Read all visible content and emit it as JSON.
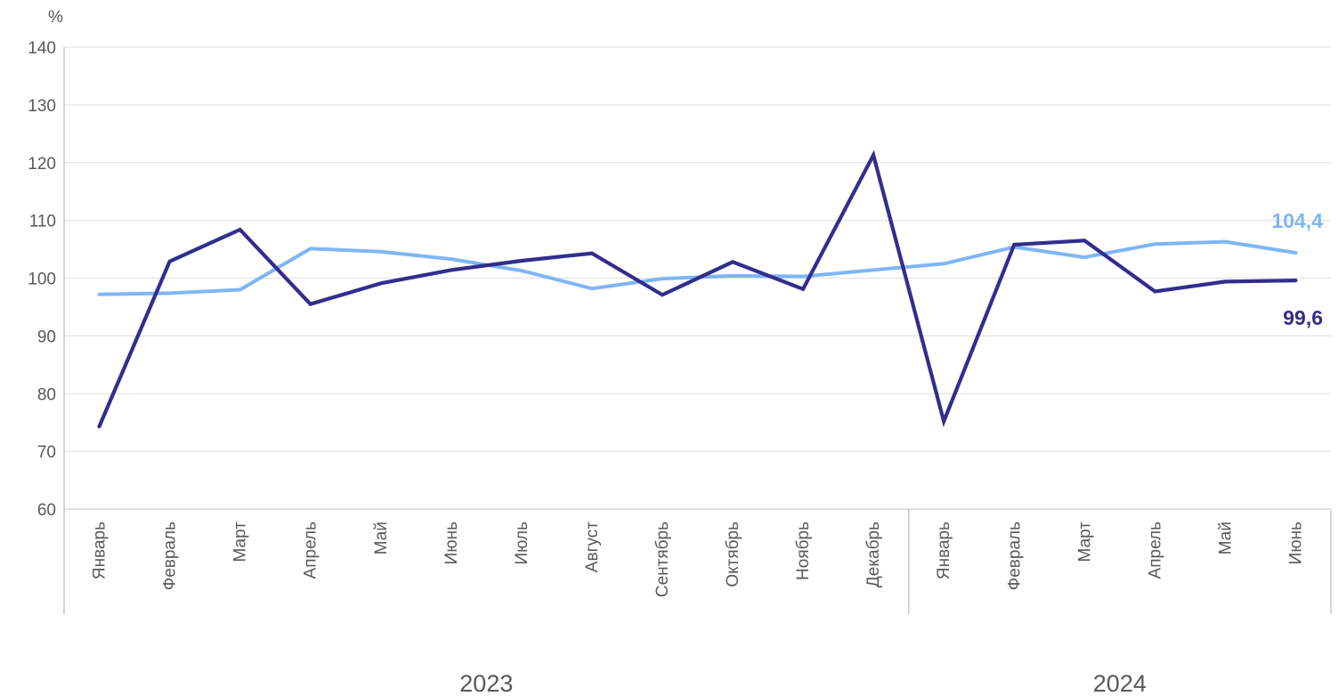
{
  "chart_data": {
    "type": "line",
    "unit_label": "%",
    "ylim": [
      60,
      140
    ],
    "yticks": [
      60,
      70,
      80,
      90,
      100,
      110,
      120,
      130,
      140
    ],
    "grid": true,
    "categories": [
      "Январь",
      "Февраль",
      "Март",
      "Апрель",
      "Май",
      "Июнь",
      "Июль",
      "Август",
      "Сентябрь",
      "Октябрь",
      "Ноябрь",
      "Декабрь",
      "Январь",
      "Февраль",
      "Март",
      "Апрель",
      "Май",
      "Июнь"
    ],
    "year_groups": [
      {
        "label": "2023",
        "count": 12
      },
      {
        "label": "2024",
        "count": 6
      }
    ],
    "series": [
      {
        "color": "#7fb5f5",
        "values": [
          97.2,
          97.4,
          98.0,
          105.1,
          104.6,
          103.3,
          101.3,
          98.2,
          99.9,
          100.4,
          100.3,
          101.4,
          102.5,
          105.4,
          103.6,
          105.9,
          106.3,
          104.4
        ],
        "end_label": "104,4"
      },
      {
        "color": "#332d8c",
        "values": [
          74.3,
          102.9,
          108.4,
          95.5,
          99.1,
          101.4,
          103.0,
          104.3,
          97.1,
          102.8,
          98.1,
          121.3,
          75.2,
          105.8,
          106.5,
          97.7,
          99.4,
          99.6
        ],
        "end_label": "99,6"
      }
    ]
  }
}
